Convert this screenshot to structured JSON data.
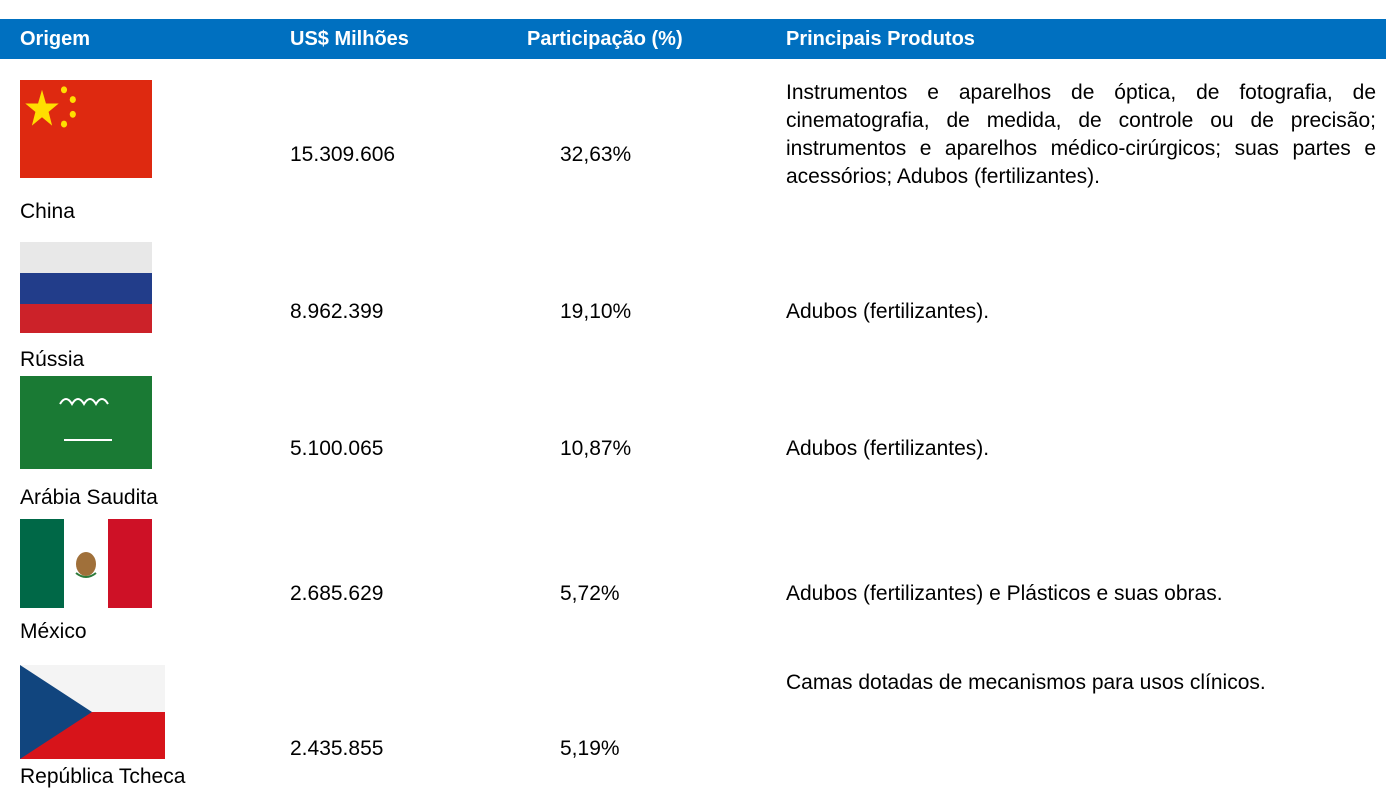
{
  "header": {
    "columns": [
      "Origem",
      "US$ Milhões",
      "Participação (%)",
      "Principais Produtos"
    ]
  },
  "table": {
    "rows": [
      [
        "China",
        "15.309.606",
        "32,63%",
        "Instrumentos e aparelhos de óptica, de fotografia, de cinematografia, de medida, de controle ou de precisão; instrumentos e aparelhos médico-cirúrgicos; suas partes e acessórios; Adubos (fertilizantes)."
      ],
      [
        "Rússia",
        "8.962.399",
        "19,10%",
        "Adubos (fertilizantes)."
      ],
      [
        "Arábia Saudita",
        "5.100.065",
        "10,87%",
        "Adubos (fertilizantes)."
      ],
      [
        "México",
        "2.685.629",
        "5,72%",
        "Adubos (fertilizantes) e Plásticos e suas obras."
      ],
      [
        "República Tcheca",
        "2.435.855",
        "5,19%",
        "Camas dotadas de mecanismos para usos clínicos."
      ]
    ]
  }
}
